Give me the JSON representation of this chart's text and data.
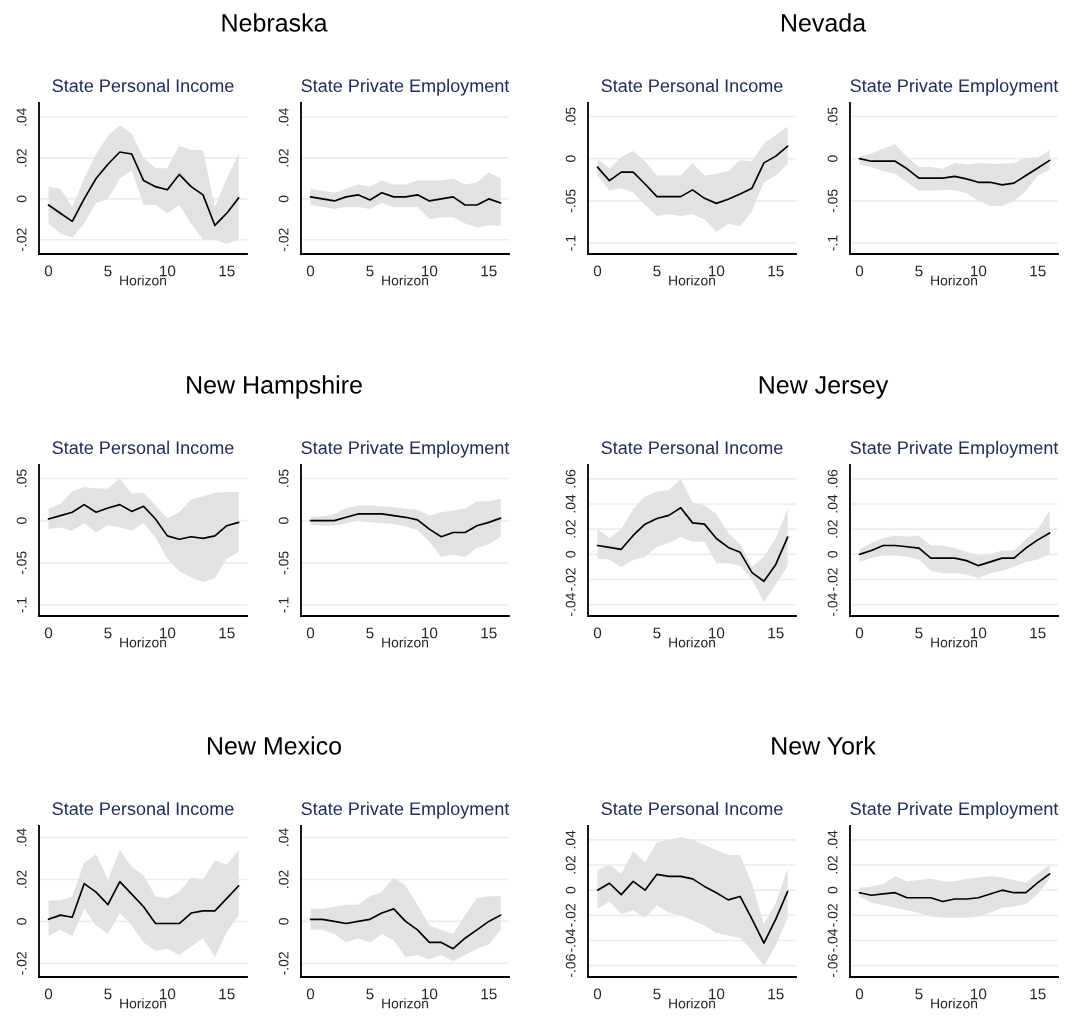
{
  "chart_data": [
    {
      "type": "line",
      "title": "State Personal Income",
      "xlabel": "Horizon",
      "annotations": [
        "Nebraska"
      ],
      "x": [
        0,
        1,
        2,
        3,
        4,
        5,
        6,
        7,
        8,
        9,
        10,
        11,
        12,
        13,
        14,
        15,
        16
      ],
      "xlim": [
        -0.8,
        16.7
      ],
      "xticks": [
        0,
        5,
        10,
        15
      ],
      "ylim": [
        -0.027,
        0.047
      ],
      "yticks": [
        {
          "value": -0.02,
          "label": "-.02"
        },
        0,
        {
          "value": 0.02,
          "label": ".02"
        },
        {
          "value": 0.04,
          "label": ".04"
        }
      ],
      "grid": "y",
      "series": [
        {
          "color": "#000000",
          "values": [
            -0.003,
            -0.007,
            -0.011,
            0,
            0.01,
            0.017,
            0.023,
            0.022,
            0.009,
            0.006,
            0.0045,
            0.012,
            0.006,
            0.002,
            -0.013,
            -0.007,
            0.0005
          ],
          "upper": [
            0.006,
            0.005,
            -0.004,
            0.01,
            0.022,
            0.031,
            0.036,
            0.032,
            0.02,
            0.015,
            0.015,
            0.026,
            0.024,
            0.024,
            -0.004,
            0.01,
            0.022
          ],
          "lower": [
            -0.012,
            -0.017,
            -0.019,
            -0.012,
            -0.002,
            0,
            0.01,
            0.014,
            -0.003,
            -0.003,
            -0.007,
            -0.003,
            -0.012,
            -0.02,
            -0.02,
            -0.022,
            -0.02
          ]
        }
      ]
    },
    {
      "type": "line",
      "title": "State Private Employment",
      "xlabel": "Horizon",
      "x": [
        0,
        1,
        2,
        3,
        4,
        5,
        6,
        7,
        8,
        9,
        10,
        11,
        12,
        13,
        14,
        15,
        16
      ],
      "xlim": [
        -0.8,
        16.7
      ],
      "xticks": [
        0,
        5,
        10,
        15
      ],
      "ylim": [
        -0.027,
        0.047
      ],
      "yticks": [
        {
          "value": -0.02,
          "label": "-.02"
        },
        0,
        {
          "value": 0.02,
          "label": ".02"
        },
        {
          "value": 0.04,
          "label": ".04"
        }
      ],
      "grid": "y",
      "series": [
        {
          "color": "#000000",
          "values": [
            0.001,
            0,
            -0.001,
            0.001,
            0.002,
            -0.0005,
            0.003,
            0.001,
            0.001,
            0.002,
            -0.001,
            0,
            0.001,
            -0.003,
            -0.003,
            0,
            -0.002
          ],
          "upper": [
            0.005,
            0.004,
            0.003,
            0.005,
            0.007,
            0.006,
            0.009,
            0.007,
            0.007,
            0.009,
            0.009,
            0.009,
            0.01,
            0.007,
            0.008,
            0.013,
            0.01
          ],
          "lower": [
            -0.003,
            -0.004,
            -0.005,
            -0.004,
            -0.004,
            -0.005,
            -0.002,
            -0.004,
            -0.004,
            -0.004,
            -0.01,
            -0.009,
            -0.009,
            -0.012,
            -0.014,
            -0.013,
            -0.013
          ]
        }
      ]
    },
    {
      "type": "line",
      "title": "State Personal Income",
      "xlabel": "Horizon",
      "annotations": [
        "Nevada"
      ],
      "x": [
        0,
        1,
        2,
        3,
        4,
        5,
        6,
        7,
        8,
        9,
        10,
        11,
        12,
        13,
        14,
        15,
        16
      ],
      "xlim": [
        -0.8,
        16.7
      ],
      "xticks": [
        0,
        5,
        10,
        15
      ],
      "ylim": [
        -0.113,
        0.066
      ],
      "yticks": [
        {
          "value": -0.1,
          "label": "-.1"
        },
        {
          "value": -0.05,
          "label": "-.05"
        },
        0,
        {
          "value": 0.05,
          "label": ".05"
        }
      ],
      "grid": "y",
      "series": [
        {
          "color": "#000000",
          "values": [
            -0.01,
            -0.026,
            -0.016,
            -0.016,
            -0.03,
            -0.045,
            -0.045,
            -0.045,
            -0.037,
            -0.047,
            -0.053,
            -0.048,
            -0.042,
            -0.035,
            -0.005,
            0.003,
            0.015
          ],
          "upper": [
            0,
            -0.012,
            0.002,
            0.009,
            -0.003,
            -0.02,
            -0.02,
            -0.02,
            -0.005,
            -0.02,
            -0.018,
            -0.015,
            -0.002,
            -0.003,
            0.018,
            0.028,
            0.038
          ],
          "lower": [
            -0.02,
            -0.038,
            -0.035,
            -0.04,
            -0.055,
            -0.068,
            -0.066,
            -0.068,
            -0.066,
            -0.072,
            -0.087,
            -0.077,
            -0.08,
            -0.062,
            -0.028,
            -0.02,
            -0.006
          ]
        }
      ]
    },
    {
      "type": "line",
      "title": "State Private Employment",
      "xlabel": "Horizon",
      "x": [
        0,
        1,
        2,
        3,
        4,
        5,
        6,
        7,
        8,
        9,
        10,
        11,
        12,
        13,
        14,
        15,
        16
      ],
      "xlim": [
        -0.8,
        16.7
      ],
      "xticks": [
        0,
        5,
        10,
        15
      ],
      "ylim": [
        -0.113,
        0.066
      ],
      "yticks": [
        {
          "value": -0.1,
          "label": "-.1"
        },
        {
          "value": -0.05,
          "label": "-.05"
        },
        0,
        {
          "value": 0.05,
          "label": ".05"
        }
      ],
      "grid": "y",
      "series": [
        {
          "color": "#000000",
          "values": [
            0,
            -0.003,
            -0.003,
            -0.003,
            -0.012,
            -0.023,
            -0.023,
            -0.023,
            -0.021,
            -0.024,
            -0.028,
            -0.028,
            -0.031,
            -0.029,
            -0.02,
            -0.011,
            -0.002
          ],
          "upper": [
            0.003,
            0.006,
            0.012,
            0.017,
            0.002,
            -0.01,
            -0.01,
            -0.012,
            -0.005,
            -0.007,
            -0.005,
            -0.006,
            -0.006,
            -0.005,
            0.001,
            0.001,
            0.01
          ],
          "lower": [
            -0.007,
            -0.01,
            -0.015,
            -0.018,
            -0.028,
            -0.038,
            -0.038,
            -0.037,
            -0.037,
            -0.041,
            -0.05,
            -0.056,
            -0.056,
            -0.05,
            -0.038,
            -0.02,
            -0.013
          ]
        }
      ]
    },
    {
      "type": "line",
      "title": "State Personal Income",
      "xlabel": "Horizon",
      "annotations": [
        "New Hampshire"
      ],
      "x": [
        0,
        1,
        2,
        3,
        4,
        5,
        6,
        7,
        8,
        9,
        10,
        11,
        12,
        13,
        14,
        15,
        16
      ],
      "xlim": [
        -0.8,
        16.7
      ],
      "xticks": [
        0,
        5,
        10,
        15
      ],
      "ylim": [
        -0.113,
        0.066
      ],
      "yticks": [
        {
          "value": -0.1,
          "label": "-.1"
        },
        {
          "value": -0.05,
          "label": "-.05"
        },
        0,
        {
          "value": 0.05,
          "label": ".05"
        }
      ],
      "grid": "y",
      "series": [
        {
          "color": "#000000",
          "values": [
            0.002,
            0.006,
            0.01,
            0.019,
            0.01,
            0.015,
            0.019,
            0.011,
            0.017,
            0.002,
            -0.018,
            -0.022,
            -0.019,
            -0.021,
            -0.018,
            -0.006,
            -0.002
          ],
          "upper": [
            0.014,
            0.02,
            0.035,
            0.04,
            0.038,
            0.038,
            0.05,
            0.032,
            0.033,
            0.018,
            0.003,
            0.01,
            0.025,
            0.029,
            0.033,
            0.034,
            0.034
          ],
          "lower": [
            -0.01,
            -0.008,
            -0.012,
            -0.003,
            -0.014,
            -0.005,
            -0.008,
            -0.012,
            -0.003,
            -0.02,
            -0.045,
            -0.06,
            -0.067,
            -0.073,
            -0.068,
            -0.045,
            -0.037
          ]
        }
      ]
    },
    {
      "type": "line",
      "title": "State Private Employment",
      "xlabel": "Horizon",
      "x": [
        0,
        1,
        2,
        3,
        4,
        5,
        6,
        7,
        8,
        9,
        10,
        11,
        12,
        13,
        14,
        15,
        16
      ],
      "xlim": [
        -0.8,
        16.7
      ],
      "xticks": [
        0,
        5,
        10,
        15
      ],
      "ylim": [
        -0.113,
        0.066
      ],
      "yticks": [
        {
          "value": -0.1,
          "label": "-.1"
        },
        {
          "value": -0.05,
          "label": "-.05"
        },
        0,
        {
          "value": 0.05,
          "label": ".05"
        }
      ],
      "grid": "y",
      "series": [
        {
          "color": "#000000",
          "values": [
            0,
            0,
            0,
            0.004,
            0.008,
            0.008,
            0.008,
            0.006,
            0.004,
            0.001,
            -0.01,
            -0.019,
            -0.014,
            -0.014,
            -0.006,
            -0.002,
            0.003
          ],
          "upper": [
            0.005,
            0.005,
            0.008,
            0.015,
            0.018,
            0.018,
            0.017,
            0.016,
            0.014,
            0.013,
            0.006,
            0.01,
            0.012,
            0.014,
            0.023,
            0.023,
            0.026
          ],
          "lower": [
            -0.005,
            -0.006,
            -0.006,
            -0.003,
            0,
            -0.002,
            -0.003,
            -0.004,
            -0.007,
            -0.011,
            -0.025,
            -0.043,
            -0.04,
            -0.043,
            -0.032,
            -0.028,
            -0.019
          ]
        }
      ]
    },
    {
      "type": "line",
      "title": "State Personal Income",
      "xlabel": "Horizon",
      "annotations": [
        "New Jersey"
      ],
      "x": [
        0,
        1,
        2,
        3,
        4,
        5,
        6,
        7,
        8,
        9,
        10,
        11,
        12,
        13,
        14,
        15,
        16
      ],
      "xlim": [
        -0.8,
        16.7
      ],
      "xticks": [
        0,
        5,
        10,
        15
      ],
      "ylim": [
        -0.049,
        0.071
      ],
      "yticks": [
        {
          "value": -0.04,
          "label": "-.04"
        },
        {
          "value": -0.02,
          "label": "-.02"
        },
        0,
        {
          "value": 0.02,
          "label": ".02"
        },
        {
          "value": 0.04,
          "label": ".04"
        },
        {
          "value": 0.06,
          "label": ".06"
        }
      ],
      "grid": "y",
      "series": [
        {
          "color": "#000000",
          "values": [
            0.007,
            0.0055,
            0.004,
            0.015,
            0.024,
            0.0285,
            0.031,
            0.037,
            0.025,
            0.024,
            0.0126,
            0.0055,
            0.0016,
            -0.0145,
            -0.0214,
            -0.008,
            0.0137
          ],
          "upper": [
            0.02,
            0.013,
            0.02,
            0.036,
            0.046,
            0.05,
            0.051,
            0.06,
            0.041,
            0.039,
            0.032,
            0.017,
            0.008,
            -0.01,
            -0.002,
            0.013,
            0.036
          ],
          "lower": [
            -0.0036,
            -0.004,
            -0.01,
            -0.0045,
            -0.002,
            0.006,
            0.009,
            0.0137,
            0.01,
            0.01,
            -0.007,
            -0.007,
            -0.009,
            -0.02,
            -0.038,
            -0.024,
            -0.009
          ]
        }
      ]
    },
    {
      "type": "line",
      "title": "State Private Employment",
      "xlabel": "Horizon",
      "x": [
        0,
        1,
        2,
        3,
        4,
        5,
        6,
        7,
        8,
        9,
        10,
        11,
        12,
        13,
        14,
        15,
        16
      ],
      "xlim": [
        -0.8,
        16.7
      ],
      "xticks": [
        0,
        5,
        10,
        15
      ],
      "ylim": [
        -0.049,
        0.071
      ],
      "yticks": [
        {
          "value": -0.04,
          "label": "-.04"
        },
        {
          "value": -0.02,
          "label": "-.02"
        },
        0,
        {
          "value": 0.02,
          "label": ".02"
        },
        {
          "value": 0.04,
          "label": ".04"
        },
        {
          "value": 0.06,
          "label": ".06"
        }
      ],
      "grid": "y",
      "series": [
        {
          "color": "#000000",
          "values": [
            0,
            0.003,
            0.007,
            0.007,
            0.006,
            0.005,
            -0.003,
            -0.003,
            -0.003,
            -0.005,
            -0.009,
            -0.006,
            -0.003,
            -0.003,
            0.005,
            0.0115,
            0.017
          ],
          "upper": [
            0.004,
            0.009,
            0.013,
            0.015,
            0.014,
            0.015,
            0.007,
            0.007,
            0.005,
            0.002,
            -0.001,
            0,
            0.003,
            0.003,
            0.012,
            0.02,
            0.035
          ],
          "lower": [
            -0.006,
            -0.003,
            -0.001,
            -0.001,
            -0.002,
            -0.004,
            -0.013,
            -0.015,
            -0.015,
            -0.016,
            -0.019,
            -0.015,
            -0.013,
            -0.01,
            -0.006,
            -0.004,
            0
          ]
        }
      ]
    },
    {
      "type": "line",
      "title": "State Personal Income",
      "xlabel": "Horizon",
      "annotations": [
        "New Mexico"
      ],
      "x": [
        0,
        1,
        2,
        3,
        4,
        5,
        6,
        7,
        8,
        9,
        10,
        11,
        12,
        13,
        14,
        15,
        16
      ],
      "xlim": [
        -0.8,
        16.7
      ],
      "xticks": [
        0,
        5,
        10,
        15
      ],
      "ylim": [
        -0.0265,
        0.0455
      ],
      "yticks": [
        {
          "value": -0.02,
          "label": "-.02"
        },
        0,
        {
          "value": 0.02,
          "label": ".02"
        },
        {
          "value": 0.04,
          "label": ".04"
        }
      ],
      "grid": "y",
      "series": [
        {
          "color": "#000000",
          "values": [
            0.001,
            0.003,
            0.002,
            0.018,
            0.014,
            0.008,
            0.019,
            0.013,
            0.007,
            -0.001,
            -0.001,
            -0.001,
            0.004,
            0.005,
            0.005,
            0.011,
            0.017
          ],
          "upper": [
            0.01,
            0.01,
            0.012,
            0.028,
            0.032,
            0.02,
            0.034,
            0.026,
            0.022,
            0.012,
            0.011,
            0.014,
            0.021,
            0.02,
            0.029,
            0.027,
            0.034
          ],
          "lower": [
            -0.007,
            -0.004,
            -0.007,
            0.006,
            -0.002,
            -0.006,
            0.004,
            -0.002,
            -0.01,
            -0.014,
            -0.013,
            -0.016,
            -0.012,
            -0.008,
            -0.017,
            -0.005,
            0.003
          ]
        }
      ]
    },
    {
      "type": "line",
      "title": "State Private Employment",
      "xlabel": "Horizon",
      "x": [
        0,
        1,
        2,
        3,
        4,
        5,
        6,
        7,
        8,
        9,
        10,
        11,
        12,
        13,
        14,
        15,
        16
      ],
      "xlim": [
        -0.8,
        16.7
      ],
      "xticks": [
        0,
        5,
        10,
        15
      ],
      "ylim": [
        -0.0265,
        0.0455
      ],
      "yticks": [
        {
          "value": -0.02,
          "label": "-.02"
        },
        0,
        {
          "value": 0.02,
          "label": ".02"
        },
        {
          "value": 0.04,
          "label": ".04"
        }
      ],
      "grid": "y",
      "series": [
        {
          "color": "#000000",
          "values": [
            0.001,
            0.001,
            0,
            -0.001,
            0,
            0.001,
            0.004,
            0.006,
            0,
            -0.004,
            -0.01,
            -0.01,
            -0.013,
            -0.008,
            -0.004,
            0,
            0.003
          ],
          "upper": [
            0.006,
            0.006,
            0.007,
            0.008,
            0.008,
            0.012,
            0.014,
            0.021,
            0.017,
            0.008,
            -0.002,
            -0.004,
            -0.006,
            0.003,
            0.011,
            0.012,
            0.012
          ],
          "lower": [
            -0.004,
            -0.004,
            -0.006,
            -0.01,
            -0.008,
            -0.01,
            -0.006,
            -0.009,
            -0.017,
            -0.016,
            -0.018,
            -0.016,
            -0.019,
            -0.016,
            -0.013,
            -0.011,
            -0.004
          ]
        }
      ]
    },
    {
      "type": "line",
      "title": "State Personal Income",
      "xlabel": "Horizon",
      "annotations": [
        "New York"
      ],
      "x": [
        0,
        1,
        2,
        3,
        4,
        5,
        6,
        7,
        8,
        9,
        10,
        11,
        12,
        13,
        14,
        15,
        16
      ],
      "xlim": [
        -0.8,
        16.7
      ],
      "xticks": [
        0,
        5,
        10,
        15
      ],
      "ylim": [
        -0.069,
        0.051
      ],
      "yticks": [
        {
          "value": -0.06,
          "label": "-.06"
        },
        {
          "value": -0.04,
          "label": "-.04"
        },
        {
          "value": -0.02,
          "label": "-.02"
        },
        0,
        {
          "value": 0.02,
          "label": ".02"
        },
        {
          "value": 0.04,
          "label": ".04"
        }
      ],
      "grid": "y",
      "series": [
        {
          "color": "#000000",
          "values": [
            0,
            0.0055,
            -0.0035,
            0.007,
            0,
            0.0126,
            0.011,
            0.011,
            0.009,
            0.003,
            -0.002,
            -0.0077,
            -0.005,
            -0.023,
            -0.042,
            -0.023,
            -0.001
          ],
          "upper": [
            0.016,
            0.02,
            0.013,
            0.031,
            0.022,
            0.038,
            0.04,
            0.042,
            0.04,
            0.036,
            0.032,
            0.028,
            0.028,
            0.005,
            -0.027,
            -0.01,
            0.017
          ],
          "lower": [
            -0.015,
            -0.009,
            -0.019,
            -0.016,
            -0.022,
            -0.012,
            -0.018,
            -0.02,
            -0.024,
            -0.028,
            -0.034,
            -0.036,
            -0.038,
            -0.048,
            -0.06,
            -0.044,
            -0.022
          ]
        }
      ]
    },
    {
      "type": "line",
      "title": "State Private Employment",
      "xlabel": "Horizon",
      "x": [
        0,
        1,
        2,
        3,
        4,
        5,
        6,
        7,
        8,
        9,
        10,
        11,
        12,
        13,
        14,
        15,
        16
      ],
      "xlim": [
        -0.8,
        16.7
      ],
      "xticks": [
        0,
        5,
        10,
        15
      ],
      "ylim": [
        -0.069,
        0.051
      ],
      "yticks": [
        {
          "value": -0.06,
          "label": "-.06"
        },
        {
          "value": -0.04,
          "label": "-.04"
        },
        {
          "value": -0.02,
          "label": "-.02"
        },
        0,
        {
          "value": 0.02,
          "label": ".02"
        },
        {
          "value": 0.04,
          "label": ".04"
        }
      ],
      "grid": "y",
      "series": [
        {
          "color": "#000000",
          "values": [
            -0.002,
            -0.004,
            -0.003,
            -0.002,
            -0.006,
            -0.006,
            -0.006,
            -0.009,
            -0.007,
            -0.007,
            -0.006,
            -0.003,
            0,
            -0.002,
            -0.002,
            0.006,
            0.013
          ],
          "upper": [
            0.002,
            0.003,
            0.005,
            0.011,
            0.007,
            0.008,
            0.009,
            0.007,
            0.007,
            0.009,
            0.01,
            0.011,
            0.01,
            0.008,
            0.006,
            0.013,
            0.02
          ],
          "lower": [
            -0.005,
            -0.01,
            -0.012,
            -0.014,
            -0.016,
            -0.018,
            -0.021,
            -0.022,
            -0.022,
            -0.022,
            -0.021,
            -0.018,
            -0.014,
            -0.013,
            -0.011,
            -0.003,
            0.009
          ]
        }
      ]
    }
  ]
}
